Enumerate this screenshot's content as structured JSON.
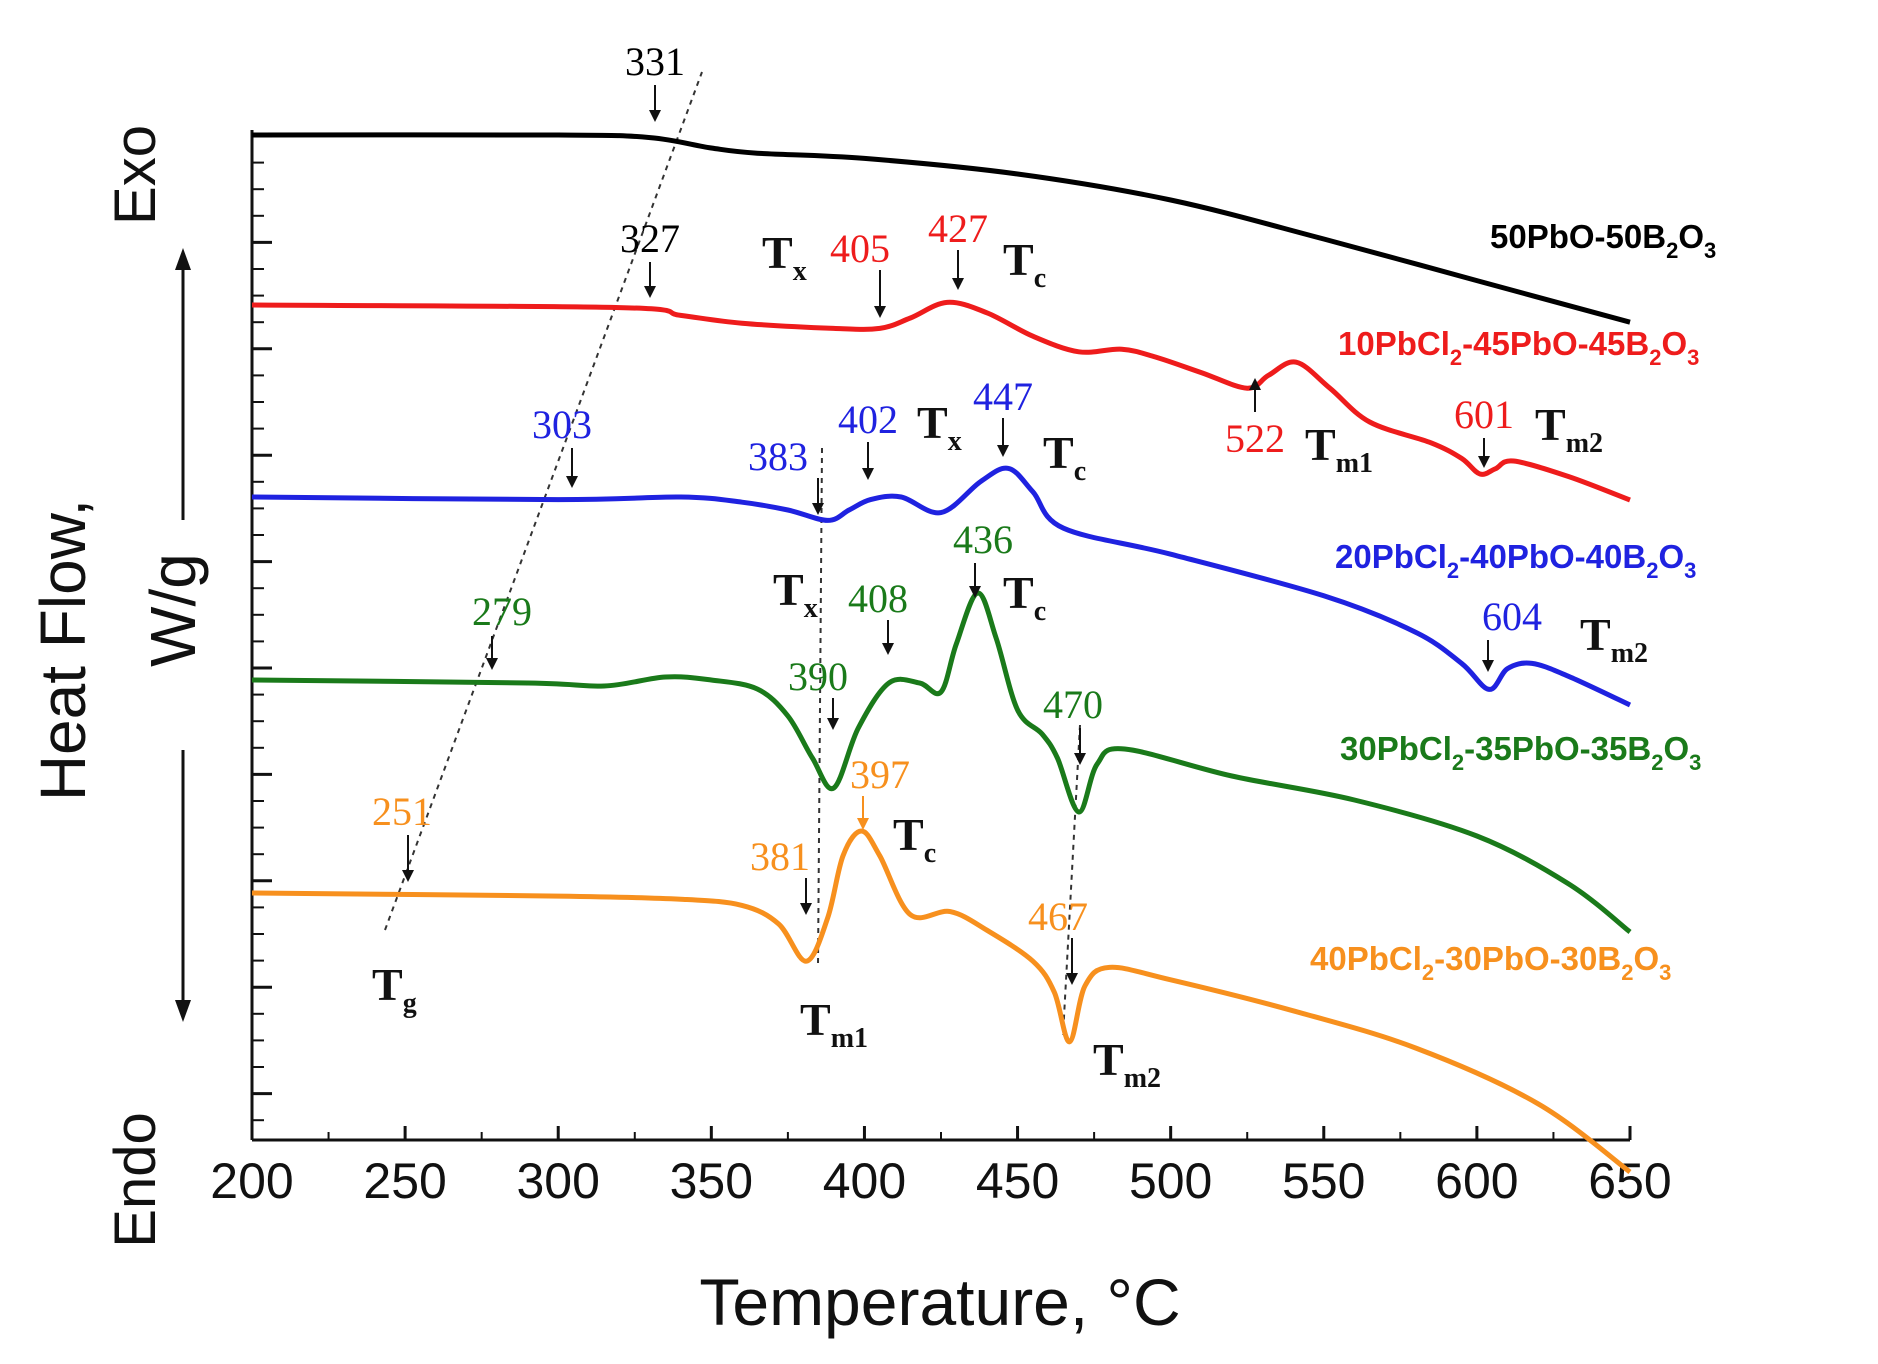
{
  "chart_data": {
    "type": "line",
    "xlabel": "Temperature, °C",
    "ylabel_line1": "Heat Flow,",
    "ylabel_line2": "W/g",
    "exo_label": "Exo",
    "endo_label": "Endo",
    "xlim": [
      200,
      650
    ],
    "x_ticks": [
      "200",
      "250",
      "300",
      "350",
      "400",
      "450",
      "500",
      "550",
      "600",
      "650"
    ],
    "series": [
      {
        "name_main": "50PbO-50B",
        "name_sub": "2",
        "name_tail": "O",
        "name_sub2": "3",
        "name_tail2": "",
        "color": "#000000",
        "points": [
          [
            200,
            0
          ],
          [
            300,
            0
          ],
          [
            330,
            -0.05
          ],
          [
            350,
            -0.25
          ],
          [
            365,
            -0.35
          ],
          [
            400,
            -0.45
          ],
          [
            450,
            -0.75
          ],
          [
            500,
            -1.25
          ],
          [
            550,
            -2.0
          ],
          [
            600,
            -2.8
          ],
          [
            650,
            -3.6
          ]
        ]
      },
      {
        "name_main": "10PbCl",
        "name_sub": "2",
        "name_tail": "-45PbO-45B",
        "name_sub2": "2",
        "name_tail2": "O",
        "name_sub3": "3",
        "color": "#ee1c1c",
        "points": [
          [
            200,
            0
          ],
          [
            320,
            -0.05
          ],
          [
            340,
            -0.2
          ],
          [
            360,
            -0.35
          ],
          [
            390,
            -0.45
          ],
          [
            405,
            -0.45
          ],
          [
            415,
            -0.25
          ],
          [
            427,
            0.05
          ],
          [
            440,
            -0.15
          ],
          [
            455,
            -0.6
          ],
          [
            470,
            -0.9
          ],
          [
            484,
            -0.85
          ],
          [
            495,
            -1.0
          ],
          [
            510,
            -1.3
          ],
          [
            525,
            -1.6
          ],
          [
            532,
            -1.35
          ],
          [
            541,
            -1.1
          ],
          [
            552,
            -1.6
          ],
          [
            565,
            -2.25
          ],
          [
            585,
            -2.65
          ],
          [
            595,
            -2.95
          ],
          [
            601,
            -3.25
          ],
          [
            606,
            -3.15
          ],
          [
            612,
            -3.0
          ],
          [
            630,
            -3.3
          ],
          [
            650,
            -3.75
          ]
        ]
      },
      {
        "name_main": "20PbCl",
        "name_sub": "2",
        "name_tail": "-40PbO-40B",
        "name_sub2": "2",
        "name_tail2": "O",
        "name_sub3": "3",
        "color": "#1f22e0",
        "points": [
          [
            200,
            0
          ],
          [
            300,
            -0.05
          ],
          [
            340,
            0
          ],
          [
            360,
            -0.1
          ],
          [
            375,
            -0.25
          ],
          [
            388,
            -0.45
          ],
          [
            395,
            -0.25
          ],
          [
            402,
            -0.05
          ],
          [
            412,
            0
          ],
          [
            425,
            -0.3
          ],
          [
            438,
            0.3
          ],
          [
            447,
            0.55
          ],
          [
            455,
            0.1
          ],
          [
            465,
            -0.6
          ],
          [
            500,
            -1.1
          ],
          [
            550,
            -1.9
          ],
          [
            580,
            -2.6
          ],
          [
            595,
            -3.2
          ],
          [
            604,
            -3.7
          ],
          [
            610,
            -3.3
          ],
          [
            618,
            -3.2
          ],
          [
            630,
            -3.45
          ],
          [
            650,
            -4.0
          ]
        ]
      },
      {
        "name_main": "30PbCl",
        "name_sub": "2",
        "name_tail": "-35PbO-35B",
        "name_sub2": "2",
        "name_tail2": "O",
        "name_sub3": "3",
        "color": "#1a7a1a",
        "points": [
          [
            200,
            0
          ],
          [
            290,
            -0.05
          ],
          [
            315,
            -0.1
          ],
          [
            335,
            0.05
          ],
          [
            350,
            0
          ],
          [
            365,
            -0.15
          ],
          [
            375,
            -0.6
          ],
          [
            383,
            -1.3
          ],
          [
            390,
            -1.8
          ],
          [
            398,
            -0.8
          ],
          [
            408,
            -0.05
          ],
          [
            418,
            -0.05
          ],
          [
            425,
            -0.2
          ],
          [
            430,
            0.6
          ],
          [
            437,
            1.45
          ],
          [
            443,
            0.7
          ],
          [
            450,
            -0.5
          ],
          [
            458,
            -0.9
          ],
          [
            463,
            -1.3
          ],
          [
            470,
            -2.2
          ],
          [
            476,
            -1.4
          ],
          [
            485,
            -1.15
          ],
          [
            520,
            -1.6
          ],
          [
            560,
            -2.0
          ],
          [
            600,
            -2.6
          ],
          [
            630,
            -3.4
          ],
          [
            650,
            -4.2
          ]
        ]
      },
      {
        "name_main": "40PbCl",
        "name_sub": "2",
        "name_tail": "-30PbO-30B",
        "name_sub2": "2",
        "name_tail2": "O",
        "name_sub3": "3",
        "color": "#f7901e",
        "points": [
          [
            200,
            0
          ],
          [
            300,
            -0.05
          ],
          [
            340,
            -0.1
          ],
          [
            360,
            -0.2
          ],
          [
            372,
            -0.5
          ],
          [
            381,
            -1.1
          ],
          [
            388,
            -0.4
          ],
          [
            393,
            0.6
          ],
          [
            399,
            1.0
          ],
          [
            405,
            0.6
          ],
          [
            415,
            -0.35
          ],
          [
            428,
            -0.3
          ],
          [
            440,
            -0.6
          ],
          [
            455,
            -1.1
          ],
          [
            462,
            -1.6
          ],
          [
            467,
            -2.4
          ],
          [
            472,
            -1.5
          ],
          [
            480,
            -1.2
          ],
          [
            500,
            -1.4
          ],
          [
            540,
            -1.9
          ],
          [
            580,
            -2.5
          ],
          [
            620,
            -3.4
          ],
          [
            650,
            -4.5
          ]
        ]
      }
    ],
    "annotations": [
      {
        "text": "331",
        "color": "#000000"
      },
      {
        "text": "327",
        "color": "#000000"
      },
      {
        "text": "405",
        "color": "#ee1c1c"
      },
      {
        "text": "427",
        "color": "#ee1c1c"
      },
      {
        "text": "522",
        "color": "#ee1c1c"
      },
      {
        "text": "601",
        "color": "#ee1c1c"
      },
      {
        "text": "303",
        "color": "#1f22e0"
      },
      {
        "text": "383",
        "color": "#1f22e0"
      },
      {
        "text": "402",
        "color": "#1f22e0"
      },
      {
        "text": "447",
        "color": "#1f22e0"
      },
      {
        "text": "604",
        "color": "#1f22e0"
      },
      {
        "text": "279",
        "color": "#1a7a1a"
      },
      {
        "text": "390",
        "color": "#1a7a1a"
      },
      {
        "text": "408",
        "color": "#1a7a1a"
      },
      {
        "text": "436",
        "color": "#1a7a1a"
      },
      {
        "text": "470",
        "color": "#1a7a1a"
      },
      {
        "text": "251",
        "color": "#f7901e"
      },
      {
        "text": "381",
        "color": "#f7901e"
      },
      {
        "text": "397",
        "color": "#f7901e"
      },
      {
        "text": "467",
        "color": "#f7901e"
      }
    ],
    "t_labels": {
      "T": "T",
      "x": "x",
      "c": "c",
      "g": "g",
      "m1": "m1",
      "m2": "m2"
    }
  }
}
